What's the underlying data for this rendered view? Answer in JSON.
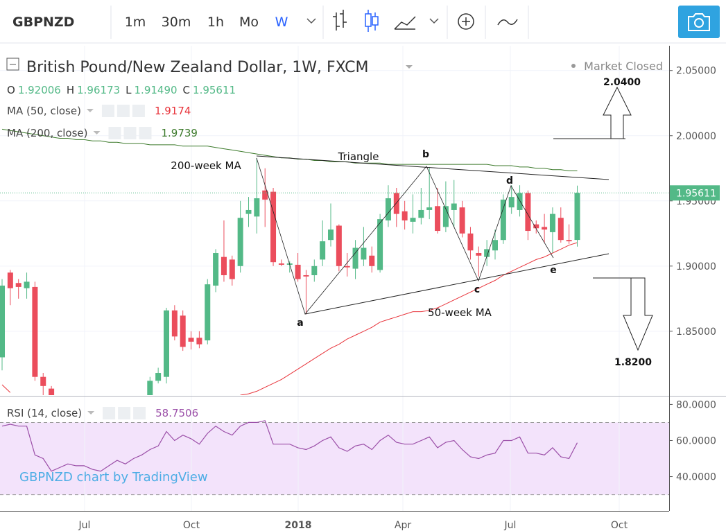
{
  "toolbar": {
    "symbol": "GBPNZD",
    "intervals": [
      "1m",
      "30m",
      "1h",
      "Mo",
      "W"
    ],
    "active_interval": 4
  },
  "chart_data": {
    "type": "candlestick",
    "title": "British Pound/New Zealand Dollar, 1W, FXCM",
    "status": "Market Closed",
    "ohlc_legend": [
      {
        "key": "O",
        "value": "1.92006"
      },
      {
        "key": "H",
        "value": "1.96173"
      },
      {
        "key": "L",
        "value": "1.91490"
      },
      {
        "key": "C",
        "value": "1.95611"
      }
    ],
    "up_color": "#53b987",
    "down_color": "#eb4d5c",
    "open": [
      1.83,
      1.895,
      1.887,
      1.883,
      1.884,
      1.815,
      1.806,
      null,
      null,
      null,
      null,
      null,
      null,
      null,
      null,
      null,
      null,
      null,
      1.8,
      1.812,
      1.815,
      1.866,
      1.862,
      1.845,
      1.845,
      1.843,
      1.885,
      1.907,
      1.905,
      1.9,
      1.94,
      1.938,
      1.958,
      1.957,
      1.902,
      1.901,
      1.901,
      1.893,
      1.893,
      1.905,
      1.92,
      1.931,
      1.9,
      1.898,
      1.905,
      1.908,
      1.897,
      1.935,
      1.956,
      1.942,
      1.934,
      1.937,
      1.943,
      1.946,
      1.93,
      1.943,
      1.945,
      1.925,
      1.91,
      1.907,
      1.912,
      1.92,
      1.945,
      1.943,
      1.956,
      1.932,
      1.93,
      1.926,
      1.937,
      1.92,
      1.92006
    ],
    "high": [
      1.89,
      1.897,
      1.89,
      1.895,
      1.888,
      1.818,
      1.808,
      null,
      null,
      null,
      null,
      null,
      null,
      null,
      null,
      null,
      null,
      null,
      1.815,
      1.822,
      1.868,
      1.87,
      1.866,
      1.85,
      1.85,
      1.89,
      1.913,
      1.935,
      1.908,
      1.95,
      1.953,
      1.983,
      1.975,
      1.96,
      1.905,
      1.904,
      1.91,
      1.897,
      1.905,
      1.935,
      1.948,
      1.932,
      1.91,
      1.92,
      1.93,
      1.915,
      1.94,
      1.962,
      1.96,
      1.95,
      1.955,
      1.96,
      1.976,
      1.96,
      1.965,
      1.966,
      1.95,
      1.93,
      1.915,
      1.92,
      1.928,
      1.955,
      1.962,
      1.962,
      1.958,
      1.935,
      1.94,
      1.945,
      1.945,
      1.932,
      1.96173
    ],
    "low": [
      1.82,
      1.87,
      1.875,
      1.875,
      1.812,
      1.8,
      1.785,
      null,
      null,
      null,
      null,
      null,
      null,
      null,
      null,
      null,
      null,
      null,
      1.795,
      1.81,
      1.81,
      1.843,
      1.835,
      1.836,
      1.837,
      1.84,
      1.88,
      1.888,
      1.885,
      1.895,
      1.93,
      1.925,
      1.93,
      1.9,
      1.9,
      1.895,
      1.888,
      1.863,
      1.888,
      1.9,
      1.915,
      1.896,
      1.892,
      1.89,
      1.9,
      1.895,
      1.895,
      1.93,
      1.93,
      1.928,
      1.925,
      1.932,
      1.936,
      1.925,
      1.926,
      1.93,
      1.922,
      1.905,
      1.892,
      1.9,
      1.905,
      1.917,
      1.94,
      1.938,
      1.92,
      1.925,
      1.918,
      1.91,
      1.918,
      1.917,
      1.9149
    ],
    "close": [
      1.885,
      1.883,
      1.884,
      1.888,
      1.815,
      1.808,
      1.79,
      null,
      null,
      null,
      null,
      null,
      null,
      null,
      null,
      null,
      null,
      null,
      1.812,
      1.818,
      1.866,
      1.846,
      1.838,
      1.842,
      1.84,
      1.886,
      1.91,
      1.893,
      1.89,
      1.937,
      1.943,
      1.952,
      1.951,
      1.903,
      1.901,
      1.902,
      1.89,
      1.892,
      1.9,
      1.919,
      1.928,
      1.9,
      1.899,
      1.914,
      1.914,
      1.9,
      1.936,
      1.952,
      1.94,
      1.935,
      1.937,
      1.943,
      1.945,
      1.927,
      1.946,
      1.948,
      1.925,
      1.912,
      1.908,
      1.913,
      1.92,
      1.951,
      1.953,
      1.956,
      1.927,
      1.929,
      1.928,
      1.94,
      1.92,
      1.919,
      1.95611
    ],
    "series": [
      {
        "name": "MA (50, close)",
        "color": "#e8333a",
        "last": 1.9174,
        "values": [
          1.809,
          1.803,
          null,
          null,
          null,
          null,
          null,
          null,
          null,
          null,
          null,
          null,
          null,
          null,
          null,
          null,
          null,
          null,
          null,
          null,
          null,
          null,
          null,
          null,
          null,
          null,
          null,
          null,
          null,
          1.801,
          1.802,
          1.804,
          1.807,
          1.81,
          1.813,
          1.817,
          1.821,
          1.825,
          1.829,
          1.833,
          1.837,
          1.84,
          1.844,
          1.847,
          1.85,
          1.853,
          1.857,
          1.859,
          1.861,
          1.863,
          1.865,
          1.865,
          1.866,
          1.868,
          1.871,
          1.874,
          1.877,
          1.88,
          1.883,
          1.886,
          1.889,
          1.893,
          1.896,
          1.899,
          1.902,
          1.905,
          1.907,
          1.91,
          1.913,
          1.916,
          1.918
        ]
      },
      {
        "name": "MA (200, close)",
        "color": "#3c7a2b",
        "last": 1.9739,
        "values": [
          2.005,
          2.004,
          2.003,
          2.002,
          2.001,
          2.0,
          1.999,
          1.998,
          1.998,
          1.997,
          1.997,
          1.996,
          1.996,
          1.995,
          1.995,
          1.994,
          1.994,
          1.994,
          1.993,
          1.993,
          1.993,
          1.993,
          1.992,
          1.992,
          1.992,
          1.992,
          1.991,
          1.99,
          1.989,
          1.988,
          1.987,
          1.986,
          1.985,
          1.984,
          1.983,
          1.983,
          1.982,
          1.982,
          1.981,
          1.981,
          1.98,
          1.98,
          1.98,
          1.979,
          1.979,
          1.979,
          1.979,
          1.978,
          1.978,
          1.978,
          1.978,
          1.978,
          1.978,
          1.978,
          1.978,
          1.978,
          1.978,
          1.978,
          1.978,
          1.978,
          1.977,
          1.977,
          1.977,
          1.976,
          1.976,
          1.975,
          1.975,
          1.974,
          1.974,
          1.973,
          1.973
        ]
      }
    ],
    "last_price": 1.95611,
    "ylim": [
      1.801,
      2.069
    ],
    "yticks": [
      {
        "value": 2.05,
        "label": "2.05000"
      },
      {
        "value": 2.0,
        "label": "2.00000"
      },
      {
        "value": 1.95,
        "label": "1.95000"
      },
      {
        "value": 1.9,
        "label": "1.90000"
      },
      {
        "value": 1.85,
        "label": "1.85000"
      }
    ],
    "x_labels": [
      "Jul",
      "Oct",
      "2018",
      "Apr",
      "Jul",
      "Oct"
    ],
    "annotations": [
      "Triangle",
      "200-week MA",
      "50-week MA",
      "a",
      "b",
      "c",
      "d",
      "e",
      "2.0400",
      "1.8200"
    ],
    "watermark": "GBPNZD chart by TradingView",
    "rsi": {
      "name": "RSI (14, close)",
      "color": "#9b4fa8",
      "last": 58.7506,
      "values": [
        68,
        69,
        68,
        68,
        52,
        50,
        43,
        45,
        47,
        46,
        46,
        44,
        43,
        46,
        49,
        47,
        50,
        52,
        55,
        57,
        65,
        60,
        63,
        61,
        58,
        64,
        68,
        65,
        63,
        68,
        70,
        70,
        71,
        58,
        58,
        58,
        56,
        55,
        57,
        60,
        62,
        56,
        54,
        57,
        58,
        55,
        60,
        63,
        59,
        58,
        58,
        60,
        62,
        56,
        59,
        60,
        55,
        51,
        50,
        52,
        53,
        60,
        60,
        62,
        53,
        53,
        52,
        56,
        51,
        50,
        58.7506
      ],
      "band": [
        30,
        70
      ],
      "band_color": "#f3e3fb",
      "ylim": [
        21,
        84
      ],
      "yticks": [
        {
          "value": 80,
          "label": "80.0000"
        },
        {
          "value": 60,
          "label": "60.0000"
        },
        {
          "value": 40,
          "label": "40.0000"
        }
      ]
    }
  }
}
